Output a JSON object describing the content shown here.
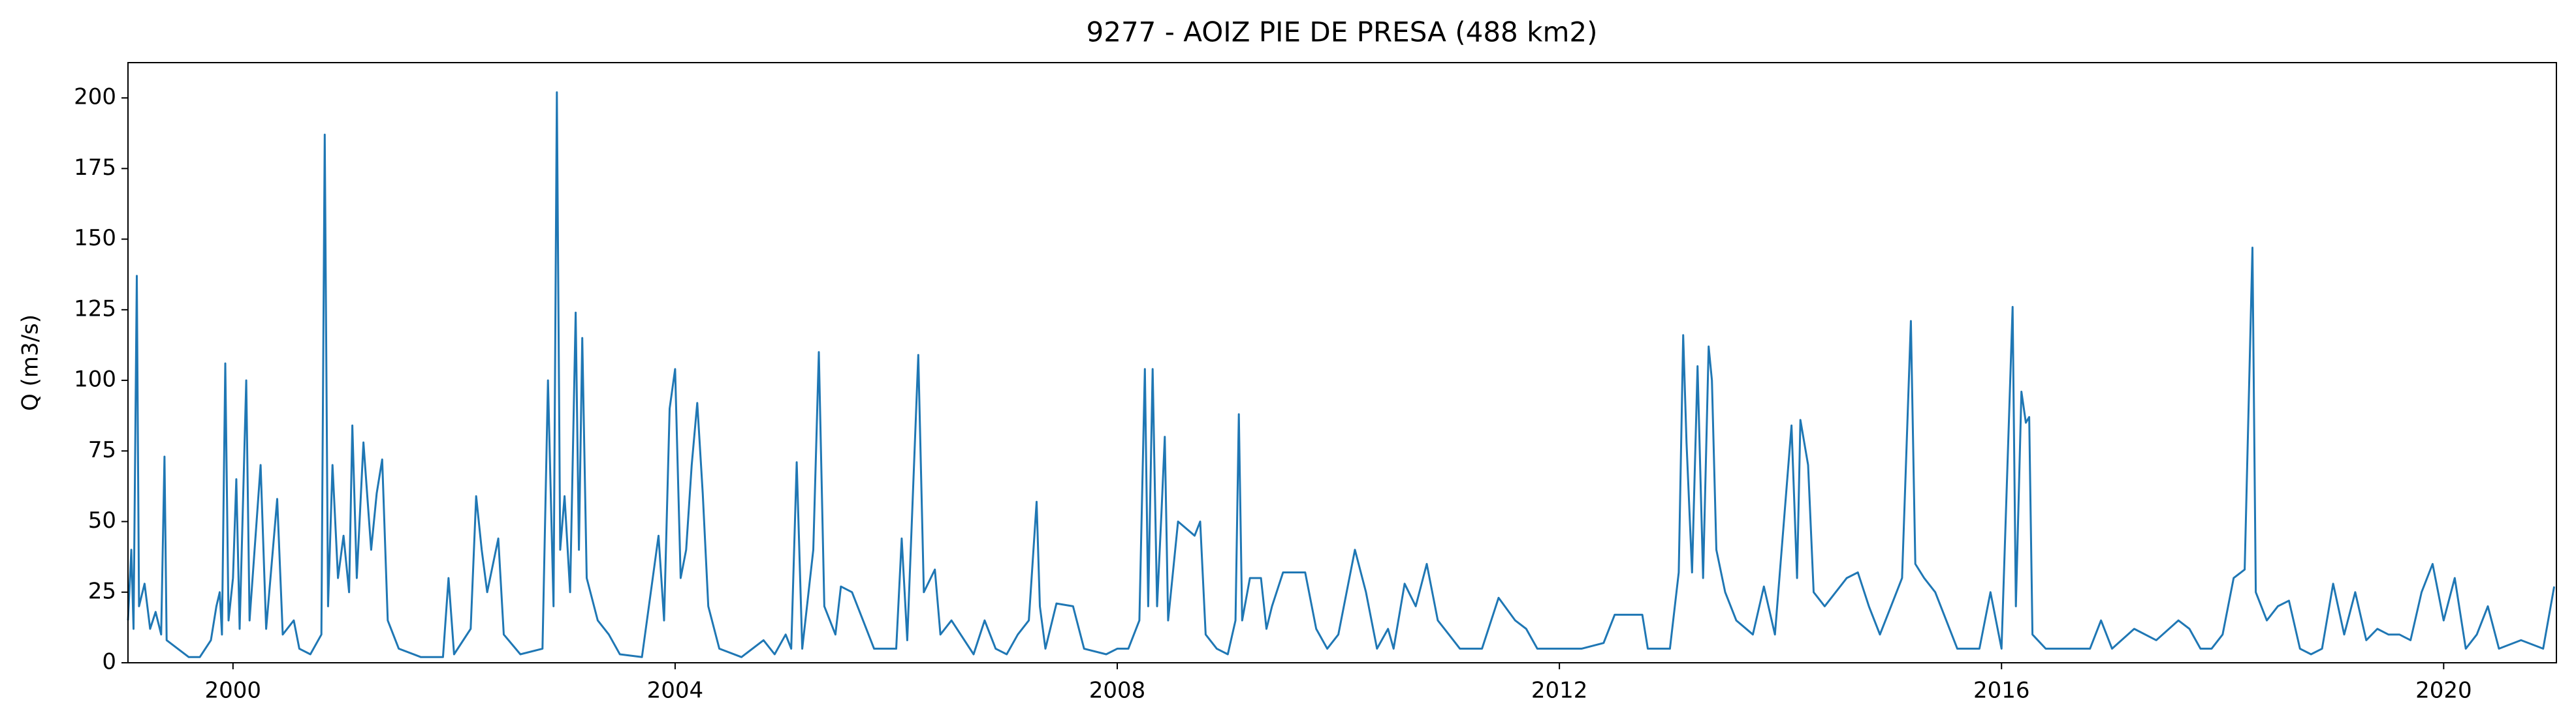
{
  "chart_data": {
    "type": "line",
    "title": "9277 - AOIZ PIE DE PRESA (488 km2)",
    "y_label": "Q (m3/s)",
    "color": "#1f77b4",
    "xlim": [
      1999.05,
      2021.02
    ],
    "xticks": [
      2000,
      2004,
      2008,
      2012,
      2016,
      2020
    ],
    "ylim": [
      0,
      212.5
    ],
    "yticks": [
      0,
      25,
      50,
      75,
      100,
      125,
      150,
      175,
      200
    ],
    "x": [
      1999.05,
      1999.08,
      1999.1,
      1999.13,
      1999.15,
      1999.2,
      1999.25,
      1999.3,
      1999.35,
      1999.38,
      1999.4,
      1999.5,
      1999.6,
      1999.7,
      1999.8,
      1999.85,
      1999.88,
      1999.9,
      1999.93,
      1999.96,
      2000.0,
      2000.03,
      2000.06,
      2000.12,
      2000.15,
      2000.25,
      2000.3,
      2000.4,
      2000.45,
      2000.55,
      2000.6,
      2000.7,
      2000.8,
      2000.83,
      2000.86,
      2000.9,
      2000.95,
      2001.0,
      2001.05,
      2001.08,
      2001.12,
      2001.18,
      2001.25,
      2001.3,
      2001.35,
      2001.4,
      2001.5,
      2001.7,
      2001.9,
      2001.95,
      2002.0,
      2002.15,
      2002.2,
      2002.25,
      2002.3,
      2002.4,
      2002.45,
      2002.6,
      2002.8,
      2002.85,
      2002.9,
      2002.93,
      2002.96,
      2003.0,
      2003.05,
      2003.1,
      2003.13,
      2003.16,
      2003.2,
      2003.3,
      2003.4,
      2003.5,
      2003.7,
      2003.85,
      2003.9,
      2003.95,
      2004.0,
      2004.05,
      2004.1,
      2004.15,
      2004.2,
      2004.25,
      2004.3,
      2004.4,
      2004.6,
      2004.8,
      2004.9,
      2005.0,
      2005.05,
      2005.1,
      2005.15,
      2005.25,
      2005.3,
      2005.35,
      2005.45,
      2005.5,
      2005.6,
      2005.7,
      2005.8,
      2006.0,
      2006.05,
      2006.1,
      2006.2,
      2006.25,
      2006.35,
      2006.4,
      2006.5,
      2006.7,
      2006.8,
      2006.9,
      2007.0,
      2007.1,
      2007.2,
      2007.27,
      2007.3,
      2007.35,
      2007.45,
      2007.6,
      2007.7,
      2007.9,
      2008.0,
      2008.1,
      2008.2,
      2008.25,
      2008.28,
      2008.32,
      2008.36,
      2008.4,
      2008.43,
      2008.46,
      2008.55,
      2008.7,
      2008.75,
      2008.8,
      2008.9,
      2009.0,
      2009.07,
      2009.1,
      2009.13,
      2009.2,
      2009.3,
      2009.35,
      2009.4,
      2009.5,
      2009.7,
      2009.8,
      2009.9,
      2010.0,
      2010.1,
      2010.15,
      2010.25,
      2010.35,
      2010.45,
      2010.5,
      2010.6,
      2010.7,
      2010.8,
      2010.9,
      2011.0,
      2011.1,
      2011.3,
      2011.45,
      2011.6,
      2011.7,
      2011.8,
      2012.0,
      2012.2,
      2012.4,
      2012.5,
      2012.75,
      2012.8,
      2013.0,
      2013.08,
      2013.12,
      2013.15,
      2013.2,
      2013.25,
      2013.3,
      2013.35,
      2013.38,
      2013.42,
      2013.5,
      2013.6,
      2013.75,
      2013.85,
      2013.95,
      2014.1,
      2014.15,
      2014.18,
      2014.25,
      2014.3,
      2014.4,
      2014.6,
      2014.7,
      2014.8,
      2014.9,
      2015.0,
      2015.1,
      2015.18,
      2015.22,
      2015.3,
      2015.4,
      2015.5,
      2015.6,
      2015.8,
      2015.9,
      2016.0,
      2016.1,
      2016.13,
      2016.18,
      2016.22,
      2016.25,
      2016.28,
      2016.4,
      2016.6,
      2016.8,
      2016.9,
      2017.0,
      2017.2,
      2017.4,
      2017.6,
      2017.7,
      2017.8,
      2017.9,
      2018.0,
      2018.1,
      2018.2,
      2018.27,
      2018.3,
      2018.4,
      2018.5,
      2018.6,
      2018.7,
      2018.8,
      2018.9,
      2019.0,
      2019.1,
      2019.2,
      2019.3,
      2019.4,
      2019.5,
      2019.6,
      2019.7,
      2019.8,
      2019.9,
      2020.0,
      2020.1,
      2020.2,
      2020.3,
      2020.4,
      2020.5,
      2020.7,
      2020.9,
      2021.0
    ],
    "values": [
      15,
      40,
      12,
      137,
      20,
      28,
      12,
      18,
      10,
      73,
      8,
      5,
      2,
      2,
      8,
      20,
      25,
      10,
      106,
      15,
      30,
      65,
      12,
      100,
      15,
      70,
      12,
      58,
      10,
      15,
      5,
      3,
      10,
      187,
      20,
      70,
      30,
      45,
      25,
      84,
      30,
      78,
      40,
      60,
      72,
      15,
      5,
      2,
      2,
      30,
      3,
      12,
      59,
      40,
      25,
      44,
      10,
      3,
      5,
      100,
      20,
      202,
      40,
      59,
      25,
      124,
      40,
      115,
      30,
      15,
      10,
      3,
      2,
      45,
      15,
      90,
      104,
      30,
      40,
      70,
      92,
      60,
      20,
      5,
      2,
      8,
      3,
      10,
      5,
      71,
      5,
      40,
      110,
      20,
      10,
      27,
      25,
      15,
      5,
      5,
      44,
      8,
      109,
      25,
      33,
      10,
      15,
      3,
      15,
      5,
      3,
      10,
      15,
      57,
      20,
      5,
      21,
      20,
      5,
      3,
      5,
      5,
      15,
      104,
      20,
      104,
      20,
      53,
      80,
      15,
      50,
      45,
      50,
      10,
      5,
      3,
      15,
      88,
      15,
      30,
      30,
      12,
      20,
      32,
      32,
      12,
      5,
      10,
      30,
      40,
      25,
      5,
      12,
      5,
      28,
      20,
      35,
      15,
      10,
      5,
      5,
      23,
      15,
      12,
      5,
      5,
      5,
      7,
      17,
      17,
      5,
      5,
      32,
      116,
      78,
      32,
      105,
      30,
      112,
      100,
      40,
      25,
      15,
      10,
      27,
      10,
      84,
      30,
      86,
      70,
      25,
      20,
      30,
      32,
      20,
      10,
      20,
      30,
      121,
      35,
      30,
      25,
      15,
      5,
      5,
      25,
      5,
      126,
      20,
      96,
      85,
      87,
      10,
      5,
      5,
      5,
      15,
      5,
      12,
      8,
      15,
      12,
      5,
      5,
      10,
      30,
      33,
      147,
      25,
      15,
      20,
      22,
      5,
      3,
      5,
      28,
      10,
      25,
      8,
      12,
      10,
      10,
      8,
      25,
      35,
      15,
      30,
      5,
      10,
      20,
      5,
      8,
      5,
      27
    ]
  }
}
